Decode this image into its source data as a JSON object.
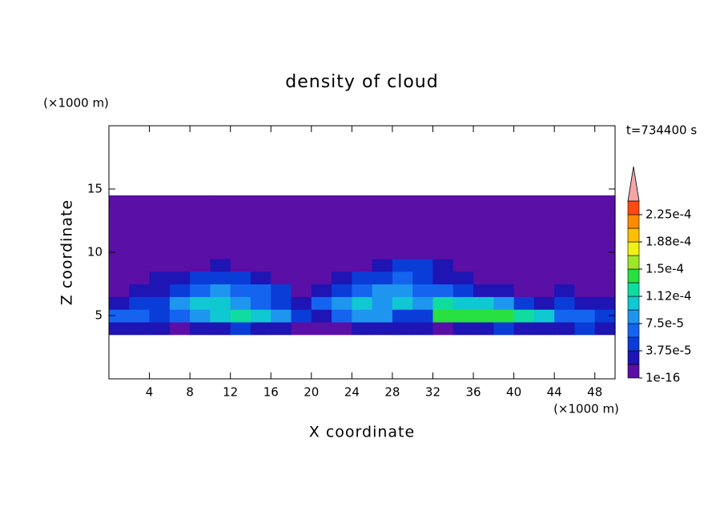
{
  "chart_data": {
    "type": "contour",
    "title": "density of cloud",
    "x_label": "X coordinate",
    "y_label": "Z coordinate",
    "x_unit": "(×1000 m)",
    "y_unit": "(×1000 m)",
    "time_label": "t=734400 s",
    "xlim": [
      0,
      50
    ],
    "ylim": [
      0,
      20
    ],
    "xticks": [
      4,
      8,
      12,
      16,
      20,
      24,
      28,
      32,
      36,
      40,
      44,
      48
    ],
    "yticks": [
      5,
      10,
      15
    ],
    "x": [
      1,
      3,
      5,
      7,
      9,
      11,
      13,
      15,
      17,
      19,
      21,
      23,
      25,
      27,
      29,
      31,
      33,
      35,
      37,
      39,
      41,
      43,
      45,
      47,
      49
    ],
    "y": [
      4,
      5,
      6,
      7,
      8,
      9,
      10,
      11,
      12,
      13,
      14
    ],
    "values": [
      [
        2.5e-05,
        2.5e-05,
        2.5e-05,
        1e-05,
        2.5e-05,
        2.5e-05,
        4.5e-05,
        2.5e-05,
        2.5e-05,
        1e-05,
        1e-05,
        1e-05,
        2.5e-05,
        2.5e-05,
        2.5e-05,
        2.5e-05,
        1e-05,
        2.5e-05,
        2.5e-05,
        4.5e-05,
        2.5e-05,
        2.5e-05,
        2.5e-05,
        4.5e-05,
        2.5e-05
      ],
      [
        6.5e-05,
        6.5e-05,
        4.5e-05,
        6.5e-05,
        8.5e-05,
        0.000105,
        0.00012,
        0.000105,
        8.5e-05,
        4.5e-05,
        2.5e-05,
        6.5e-05,
        8.5e-05,
        8.5e-05,
        4.5e-05,
        4.5e-05,
        0.000135,
        0.000135,
        0.000135,
        0.000135,
        0.00012,
        0.000105,
        6.5e-05,
        6.5e-05,
        4.5e-05
      ],
      [
        2.5e-05,
        4.5e-05,
        4.5e-05,
        8.5e-05,
        0.000105,
        0.000105,
        8.5e-05,
        6.5e-05,
        4.5e-05,
        2.5e-05,
        6.5e-05,
        8.5e-05,
        0.000105,
        8.5e-05,
        0.000105,
        8.5e-05,
        0.00012,
        0.000105,
        0.000105,
        8.5e-05,
        4.5e-05,
        2.5e-05,
        4.5e-05,
        2.5e-05,
        2.5e-05
      ],
      [
        1e-05,
        2.5e-05,
        2.5e-05,
        4.5e-05,
        6.5e-05,
        8.5e-05,
        6.5e-05,
        6.5e-05,
        4.5e-05,
        1e-05,
        2.5e-05,
        4.5e-05,
        6.5e-05,
        8.5e-05,
        8.5e-05,
        6.5e-05,
        6.5e-05,
        4.5e-05,
        2.5e-05,
        2.5e-05,
        1e-05,
        1e-05,
        2.5e-05,
        1e-05,
        1e-05
      ],
      [
        1e-05,
        1e-05,
        2.5e-05,
        2.5e-05,
        4.5e-05,
        4.5e-05,
        4.5e-05,
        2.5e-05,
        1e-05,
        1e-05,
        1e-05,
        2.5e-05,
        4.5e-05,
        4.5e-05,
        6.5e-05,
        4.5e-05,
        2.5e-05,
        2.5e-05,
        1e-05,
        1e-05,
        1e-05,
        1e-05,
        1e-05,
        1e-05,
        1e-05
      ],
      [
        1e-05,
        1e-05,
        1e-05,
        1e-05,
        1e-05,
        2.5e-05,
        1e-05,
        1e-05,
        1e-05,
        1e-05,
        1e-05,
        1e-05,
        1e-05,
        2.5e-05,
        4.5e-05,
        4.5e-05,
        2.5e-05,
        1e-05,
        1e-05,
        1e-05,
        1e-05,
        1e-05,
        1e-05,
        1e-05,
        1e-05
      ],
      [
        1e-05,
        1e-05,
        1e-05,
        1e-05,
        1e-05,
        1e-05,
        1e-05,
        1e-05,
        1e-05,
        1e-05,
        1e-05,
        1e-05,
        1e-05,
        1e-05,
        1e-05,
        1e-05,
        1e-05,
        1e-05,
        1e-05,
        1e-05,
        1e-05,
        1e-05,
        1e-05,
        1e-05,
        1e-05
      ],
      [
        1e-05,
        1e-05,
        1e-05,
        1e-05,
        1e-05,
        1e-05,
        1e-05,
        1e-05,
        1e-05,
        1e-05,
        1e-05,
        1e-05,
        1e-05,
        1e-05,
        1e-05,
        1e-05,
        1e-05,
        1e-05,
        1e-05,
        1e-05,
        1e-05,
        1e-05,
        1e-05,
        1e-05,
        1e-05
      ],
      [
        1e-05,
        1e-05,
        1e-05,
        1e-05,
        1e-05,
        1e-05,
        1e-05,
        1e-05,
        1e-05,
        1e-05,
        1e-05,
        1e-05,
        1e-05,
        1e-05,
        1e-05,
        1e-05,
        1e-05,
        1e-05,
        1e-05,
        1e-05,
        1e-05,
        1e-05,
        1e-05,
        1e-05,
        1e-05
      ],
      [
        1e-05,
        1e-05,
        1e-05,
        1e-05,
        1e-05,
        1e-05,
        1e-05,
        1e-05,
        1e-05,
        1e-05,
        1e-05,
        1e-05,
        1e-05,
        1e-05,
        1e-05,
        1e-05,
        1e-05,
        1e-05,
        1e-05,
        1e-05,
        1e-05,
        1e-05,
        1e-05,
        1e-05,
        1e-05
      ],
      [
        1e-05,
        1e-05,
        1e-05,
        1e-05,
        1e-05,
        1e-05,
        1e-05,
        1e-05,
        1e-05,
        1e-05,
        1e-05,
        1e-05,
        1e-05,
        1e-05,
        1e-05,
        1e-05,
        1e-05,
        1e-05,
        1e-05,
        1e-05,
        1e-05,
        1e-05,
        1e-05,
        1e-05,
        1e-05
      ]
    ],
    "levels": [
      1e-16,
      1.875e-05,
      3.75e-05,
      5.625e-05,
      7.5e-05,
      9.375e-05,
      0.0001125,
      0.00013125,
      0.00015,
      0.00016875,
      0.0001875,
      0.00020625,
      0.000225,
      0.00024375
    ],
    "colors": [
      "#5a0fa6",
      "#1f14b4",
      "#0a3cd8",
      "#1464f0",
      "#1e96f0",
      "#10c8d2",
      "#10dca0",
      "#28e040",
      "#a0e628",
      "#f0f014",
      "#ffbe00",
      "#ff8c00",
      "#ff4a10",
      "#f4a6a6"
    ],
    "colorbar_ticks": [
      {
        "value": 1e-16,
        "label": "1e-16"
      },
      {
        "value": 3.75e-05,
        "label": "3.75e-5"
      },
      {
        "value": 7.5e-05,
        "label": "7.5e-5"
      },
      {
        "value": 0.0001125,
        "label": "1.12e-4"
      },
      {
        "value": 0.00015,
        "label": "1.5e-4"
      },
      {
        "value": 0.0001875,
        "label": "1.88e-4"
      },
      {
        "value": 0.000225,
        "label": "2.25e-4"
      }
    ]
  }
}
